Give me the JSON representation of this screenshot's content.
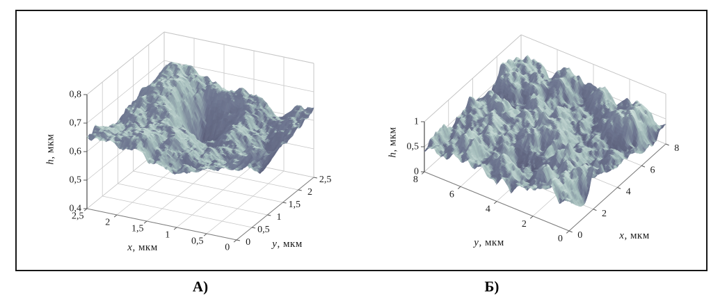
{
  "figure": {
    "type": "two-panel 3d surface figure",
    "background": "#ffffff",
    "frame_color": "#161616"
  },
  "chart_data": [
    {
      "type": "surface",
      "caption": "А)",
      "axes": {
        "h": {
          "var": "h",
          "unit": ", мкм",
          "min": 0.4,
          "max": 0.8,
          "ticks": [
            "0,4",
            "0,5",
            "0,6",
            "0,7",
            "0,8"
          ]
        },
        "x": {
          "var": "x",
          "unit": ", мкм",
          "min": 0,
          "max": 2.5,
          "edge": "left",
          "ticks": [
            "0",
            "0,5",
            "1",
            "1,5",
            "2",
            "2,5"
          ]
        },
        "y": {
          "var": "y",
          "unit": ", мкм",
          "min": 0,
          "max": 2.5,
          "edge": "right",
          "ticks": [
            "0",
            "0,5",
            "1",
            "1,5",
            "2",
            "2,5"
          ]
        }
      },
      "grid": true,
      "view": "3d perspective, z axis at left corner",
      "colormap": [
        "#45445f",
        "#6f7791",
        "#a3bbba",
        "#dcebe5"
      ],
      "surface_summary": {
        "style": "smooth-hills-crater",
        "seed": 7,
        "h_min": 0.455,
        "h_max": 0.795,
        "h_mean": 0.62,
        "description": "Smooth rolling relief: high pale plateau across the back, deep dark crater right of centre, low pale valley at front-right, narrow spiky ridge running out to the y=2.5 corner, jagged fine-scale fringe on all silhouettes."
      }
    },
    {
      "type": "surface",
      "caption": "Б)",
      "axes": {
        "h": {
          "var": "h",
          "unit": ", мкм",
          "min": 0,
          "max": 1,
          "ticks": [
            "0",
            "0,5",
            "1"
          ]
        },
        "y": {
          "var": "y",
          "unit": ", мкм",
          "min": 0,
          "max": 8,
          "edge": "left",
          "ticks": [
            "0",
            "2",
            "4",
            "6",
            "8"
          ]
        },
        "x": {
          "var": "x",
          "unit": ", мкм",
          "min": 0,
          "max": 8,
          "edge": "right",
          "ticks": [
            "0",
            "2",
            "4",
            "6",
            "8"
          ]
        }
      },
      "grid": true,
      "view": "3d perspective, z axis at left corner, shallow height box",
      "colormap": [
        "#45445f",
        "#6f7791",
        "#a3bbba",
        "#dcebe5"
      ],
      "surface_summary": {
        "style": "dense-nodular-bumps",
        "seed": 13,
        "h_min": 0.08,
        "h_max": 0.95,
        "h_mean": 0.5,
        "description": "Dense quasi-regular field of small rounded peaks (nodular grain texture) of roughly equal size covering the whole 8x8 µm area; pale mint bump tops, dark slate-purple inter-bump valleys."
      }
    }
  ]
}
